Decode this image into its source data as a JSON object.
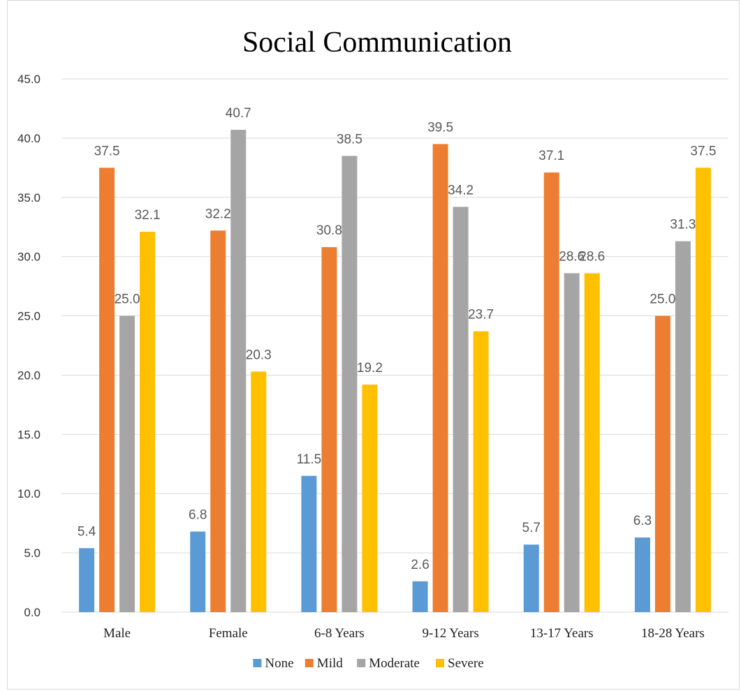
{
  "chart_data": {
    "type": "bar",
    "title": "Social Communication",
    "xlabel": "",
    "ylabel": "",
    "ylim": [
      0,
      45
    ],
    "yticks": [
      "0.0",
      "5.0",
      "10.0",
      "15.0",
      "20.0",
      "25.0",
      "30.0",
      "35.0",
      "40.0",
      "45.0"
    ],
    "grid": true,
    "legend_position": "bottom",
    "categories": [
      "Male",
      "Female",
      "6-8 Years",
      "9-12 Years",
      "13-17 Years",
      "18-28 Years"
    ],
    "series": [
      {
        "name": "None",
        "color": "#5b9bd5",
        "values": [
          5.4,
          6.8,
          11.5,
          2.6,
          5.7,
          6.3
        ]
      },
      {
        "name": "Mild",
        "color": "#ed7d31",
        "values": [
          37.5,
          32.2,
          30.8,
          39.5,
          37.1,
          25.0
        ]
      },
      {
        "name": "Moderate",
        "color": "#a5a5a5",
        "values": [
          25.0,
          40.7,
          38.5,
          34.2,
          28.6,
          31.3
        ]
      },
      {
        "name": "Severe",
        "color": "#ffc000",
        "values": [
          32.1,
          20.3,
          19.2,
          23.7,
          28.6,
          37.5
        ]
      }
    ]
  }
}
